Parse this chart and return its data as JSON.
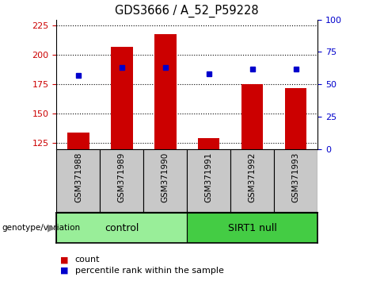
{
  "title": "GDS3666 / A_52_P59228",
  "samples": [
    "GSM371988",
    "GSM371989",
    "GSM371990",
    "GSM371991",
    "GSM371992",
    "GSM371993"
  ],
  "count_values": [
    134,
    207,
    218,
    129,
    175,
    172
  ],
  "percentile_values": [
    57,
    63,
    63,
    58,
    62,
    62
  ],
  "ylim_left": [
    120,
    230
  ],
  "ylim_right": [
    0,
    100
  ],
  "yticks_left": [
    125,
    150,
    175,
    200,
    225
  ],
  "yticks_right": [
    0,
    25,
    50,
    75,
    100
  ],
  "bar_color": "#cc0000",
  "dot_color": "#0000cc",
  "bar_width": 0.5,
  "groups": [
    {
      "label": "control",
      "n_samples": 3,
      "color": "#99ee99"
    },
    {
      "label": "SIRT1 null",
      "n_samples": 3,
      "color": "#44cc44"
    }
  ],
  "tick_label_fontsize": 7.5,
  "title_fontsize": 10.5,
  "legend_items": [
    {
      "label": "count",
      "color": "#cc0000"
    },
    {
      "label": "percentile rank within the sample",
      "color": "#0000cc"
    }
  ],
  "left_tick_color": "#cc0000",
  "right_tick_color": "#0000cc",
  "bg_color": "#c8c8c8",
  "genotype_label": "genotype/variation"
}
